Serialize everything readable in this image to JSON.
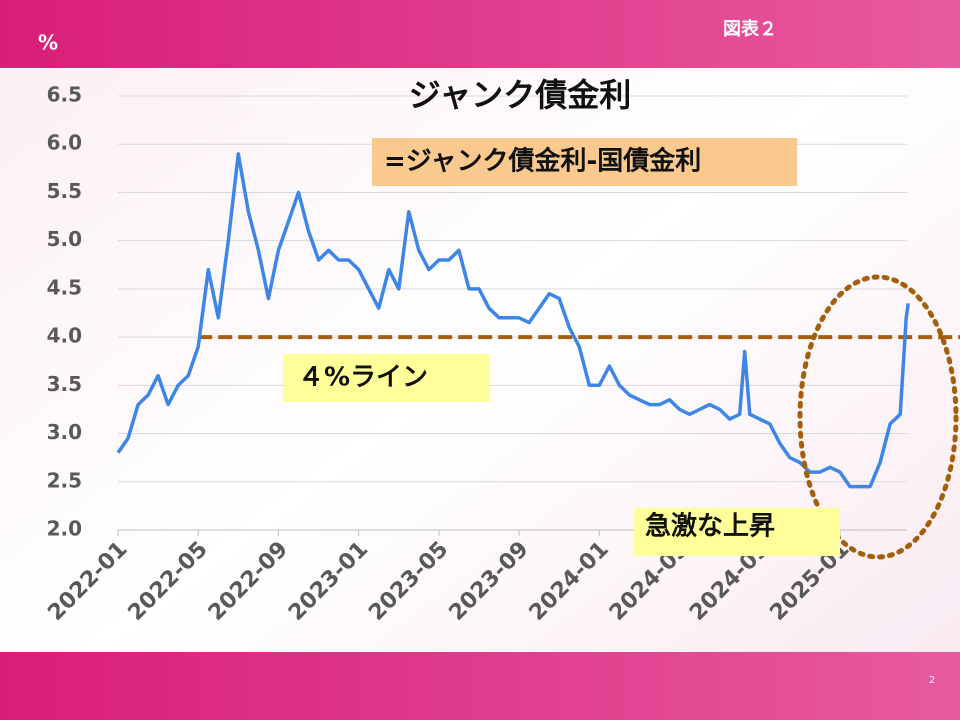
{
  "chart_data": {
    "type": "line",
    "header_unit": "%",
    "figure_label": "図表２",
    "page_number": "2",
    "title": "ジャンク債金利",
    "annotations": [
      "=ジャンク債金利-国債金利",
      "４%ライン",
      "急激な上昇"
    ],
    "reference_line": 4.0,
    "xlim": [
      0,
      40
    ],
    "xticks": [
      {
        "value": 0,
        "label": "2022-01"
      },
      {
        "value": 4,
        "label": "2022-05"
      },
      {
        "value": 8,
        "label": "2022-09"
      },
      {
        "value": 12,
        "label": "2023-01"
      },
      {
        "value": 16,
        "label": "2023-05"
      },
      {
        "value": 20,
        "label": "2023-09"
      },
      {
        "value": 24,
        "label": "2024-01"
      },
      {
        "value": 28,
        "label": "2024-05"
      },
      {
        "value": 32,
        "label": "2024-09"
      },
      {
        "value": 36,
        "label": "2025-01"
      }
    ],
    "ylim": [
      2.0,
      6.5
    ],
    "yticks": [
      {
        "value": 2,
        "label": "2.0"
      },
      2.5,
      {
        "value": 3,
        "label": "3.0"
      },
      3.5,
      {
        "value": 4,
        "label": "4.0"
      },
      4.5,
      {
        "value": 5,
        "label": "5.0"
      },
      5.5,
      {
        "value": 6,
        "label": "6.0"
      },
      6.5
    ],
    "grid": true,
    "series": [
      {
        "name": "ジャンク債金利",
        "color": "#3d86e8",
        "x": [
          0,
          0.5,
          1,
          1.5,
          2,
          2.5,
          3,
          3.5,
          4,
          4.5,
          5,
          5.5,
          6,
          6.5,
          7,
          7.5,
          8,
          8.5,
          9,
          9.5,
          10,
          10.5,
          11,
          11.5,
          12,
          12.5,
          13,
          13.5,
          14,
          14.5,
          15,
          15.5,
          16,
          16.5,
          17,
          17.5,
          18,
          18.5,
          19,
          19.5,
          20,
          20.5,
          21,
          21.5,
          22,
          22.5,
          23,
          23.5,
          24,
          24.5,
          25,
          25.5,
          26,
          26.5,
          27,
          27.5,
          28,
          28.5,
          29,
          29.5,
          30,
          30.5,
          31,
          31.25,
          31.5,
          32,
          32.5,
          33,
          33.5,
          34,
          34.5,
          35,
          35.5,
          36,
          36.5,
          37,
          37.5,
          38,
          38.5,
          39,
          39.3,
          39.4
        ],
        "values": [
          2.8,
          2.95,
          3.3,
          3.4,
          3.6,
          3.3,
          3.5,
          3.6,
          3.9,
          4.7,
          4.2,
          5.0,
          5.9,
          5.3,
          4.9,
          4.4,
          4.9,
          5.2,
          5.5,
          5.1,
          4.8,
          4.9,
          4.8,
          4.8,
          4.7,
          4.5,
          4.3,
          4.7,
          4.5,
          5.3,
          4.9,
          4.7,
          4.8,
          4.8,
          4.9,
          4.5,
          4.5,
          4.3,
          4.2,
          4.2,
          4.2,
          4.15,
          4.3,
          4.45,
          4.4,
          4.1,
          3.9,
          3.5,
          3.5,
          3.7,
          3.5,
          3.4,
          3.35,
          3.3,
          3.3,
          3.35,
          3.25,
          3.2,
          3.25,
          3.3,
          3.25,
          3.15,
          3.2,
          3.85,
          3.2,
          3.15,
          3.1,
          2.9,
          2.75,
          2.7,
          2.6,
          2.6,
          2.65,
          2.6,
          2.45,
          2.45,
          2.45,
          2.7,
          3.1,
          3.2,
          4.2,
          4.35
        ]
      }
    ]
  }
}
